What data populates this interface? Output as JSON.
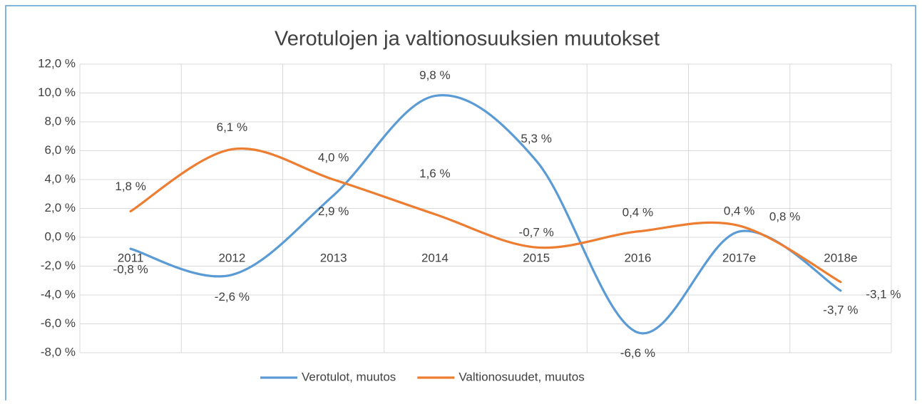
{
  "chart_data": {
    "type": "line",
    "title": "Verotulojen ja valtionosuuksien muutokset",
    "categories": [
      "2011",
      "2012",
      "2013",
      "2014",
      "2015",
      "2016",
      "2017e",
      "2018e"
    ],
    "series": [
      {
        "name": "Verotulot, muutos",
        "color": "#5b9bd5",
        "values": [
          -0.8,
          -2.6,
          2.9,
          9.8,
          5.3,
          -6.6,
          0.4,
          -3.7
        ],
        "value_labels": [
          "-0,8 %",
          "-2,6 %",
          "2,9 %",
          "9,8 %",
          "5,3 %",
          "-6,6 %",
          "0,4 %",
          "-3,7 %"
        ]
      },
      {
        "name": "Valtionosuudet, muutos",
        "color": "#ed7d31",
        "values": [
          1.8,
          6.1,
          4.0,
          1.6,
          -0.7,
          0.4,
          0.8,
          -3.1
        ],
        "value_labels": [
          "1,8 %",
          "6,1 %",
          "4,0 %",
          "1,6 %",
          "-0,7 %",
          "0,4 %",
          "0,8 %",
          "-3,1 %"
        ]
      }
    ],
    "ylim": [
      -8,
      12
    ],
    "yticks": [
      {
        "value": -8,
        "label": "-8,0 %"
      },
      {
        "value": -6,
        "label": "-6,0 %"
      },
      {
        "value": -4,
        "label": "-4,0 %"
      },
      {
        "value": -2,
        "label": "-2,0 %"
      },
      {
        "value": 0,
        "label": "0,0 %"
      },
      {
        "value": 2,
        "label": "2,0 %"
      },
      {
        "value": 4,
        "label": "4,0 %"
      },
      {
        "value": 6,
        "label": "6,0 %"
      },
      {
        "value": 8,
        "label": "8,0 %"
      },
      {
        "value": 10,
        "label": "10,0 %"
      },
      {
        "value": 12,
        "label": "12,0 %"
      }
    ],
    "grid": true,
    "smooth": true,
    "legend": "bottom"
  }
}
